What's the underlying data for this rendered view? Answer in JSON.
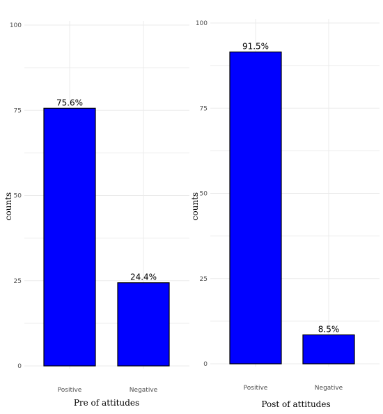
{
  "chart_data": [
    {
      "type": "bar",
      "categories": [
        "Positive",
        "Negative"
      ],
      "values": [
        75.6,
        24.4
      ],
      "data_labels": [
        "75.6%",
        "24.4%"
      ],
      "xlabel": "Pre of attitudes",
      "ylabel": "counts",
      "ylim": [
        0,
        100
      ],
      "yticks": [
        0,
        25,
        50,
        75,
        100
      ],
      "bar_color": "#0000ff",
      "grid": true
    },
    {
      "type": "bar",
      "categories": [
        "Positive",
        "Negative"
      ],
      "values": [
        91.5,
        8.5
      ],
      "data_labels": [
        "91.5%",
        "8.5%"
      ],
      "xlabel": "Post of attitudes",
      "ylabel": "counts",
      "ylim": [
        0,
        100
      ],
      "yticks": [
        0,
        25,
        50,
        75,
        100
      ],
      "bar_color": "#0000ff",
      "grid": true
    }
  ]
}
